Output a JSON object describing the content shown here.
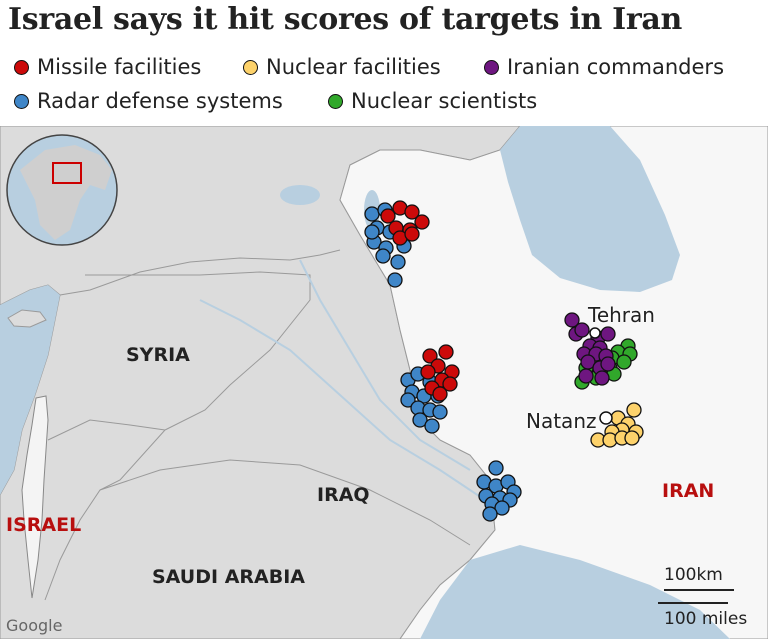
{
  "title": "Israel says it hit scores of targets in Iran",
  "legend": [
    {
      "label": "Missile facilities",
      "color": "#cc0a0a"
    },
    {
      "label": "Nuclear facilities",
      "color": "#fdd26b"
    },
    {
      "label": "Iranian commanders",
      "color": "#6e1680"
    },
    {
      "label": "Radar defense systems",
      "color": "#3f86c8"
    },
    {
      "label": "Nuclear scientists",
      "color": "#31a82b"
    }
  ],
  "labels": {
    "syria": "SYRIA",
    "iraq": "IRAQ",
    "saudi": "SAUDI ARABIA",
    "israel": "ISRAEL",
    "iran": "IRAN",
    "tehran": "Tehran",
    "natanz": "Natanz"
  },
  "scale": {
    "km": "100km",
    "miles": "100 miles"
  },
  "attribution": "Google",
  "colors": {
    "sea": "#b8cfe0",
    "neighbor_land": "#dcdcdc",
    "iran_land": "#f7f7f7",
    "border": "#9a9a9a"
  }
}
